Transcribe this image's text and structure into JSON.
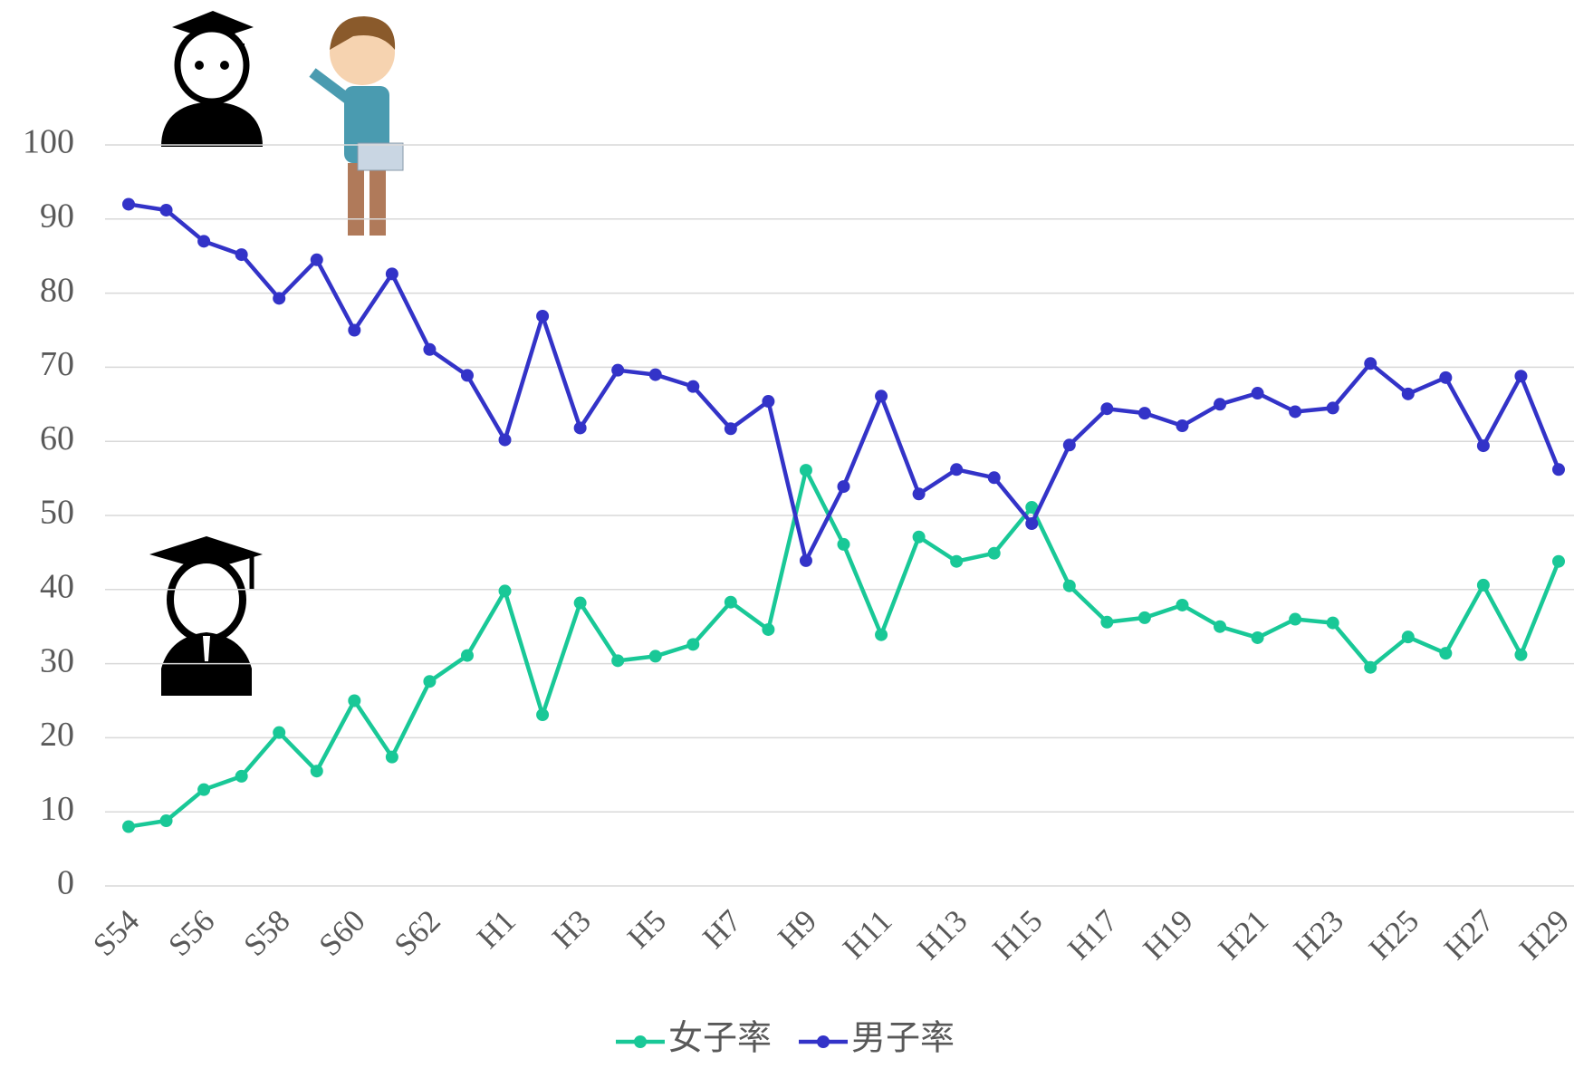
{
  "chart_data": {
    "type": "line",
    "categories": [
      "S54",
      null,
      "S56",
      null,
      "S58",
      null,
      "S60",
      null,
      "S62",
      null,
      "H1",
      null,
      "H3",
      null,
      "H5",
      null,
      "H7",
      null,
      "H9",
      null,
      "H11",
      null,
      "H13",
      null,
      "H15",
      null,
      "H17",
      null,
      "H19",
      null,
      "H21",
      null,
      "H23",
      null,
      "H25",
      null,
      "H27",
      null,
      "H29"
    ],
    "series": [
      {
        "name": "女子率",
        "color": "#19c897",
        "values": [
          8.0,
          8.8,
          13.0,
          14.8,
          20.7,
          15.5,
          25.0,
          17.4,
          27.6,
          31.1,
          39.8,
          23.1,
          38.2,
          30.4,
          31.0,
          32.6,
          38.3,
          34.6,
          56.1,
          46.1,
          33.9,
          47.1,
          43.8,
          44.9,
          51.1,
          40.5,
          35.6,
          36.2,
          37.9,
          35.0,
          33.5,
          36.0,
          35.5,
          29.5,
          33.6,
          31.4,
          40.6,
          31.2,
          43.8
        ]
      },
      {
        "name": "男子率",
        "color": "#3333c8",
        "values": [
          92.0,
          91.2,
          87.0,
          85.2,
          79.3,
          84.5,
          75.0,
          82.6,
          72.4,
          68.9,
          60.2,
          76.9,
          61.8,
          69.6,
          69.0,
          67.4,
          61.7,
          65.4,
          43.9,
          53.9,
          66.1,
          52.9,
          56.2,
          55.1,
          48.9,
          59.5,
          64.4,
          63.8,
          62.1,
          65.0,
          66.5,
          64.0,
          64.5,
          70.5,
          66.4,
          68.6,
          59.4,
          68.8,
          56.2
        ]
      }
    ],
    "ylim": [
      0,
      100
    ],
    "yticks": [
      0,
      10,
      20,
      30,
      40,
      50,
      60,
      70,
      80,
      90,
      100
    ],
    "grid": true,
    "legend": "bottom"
  }
}
